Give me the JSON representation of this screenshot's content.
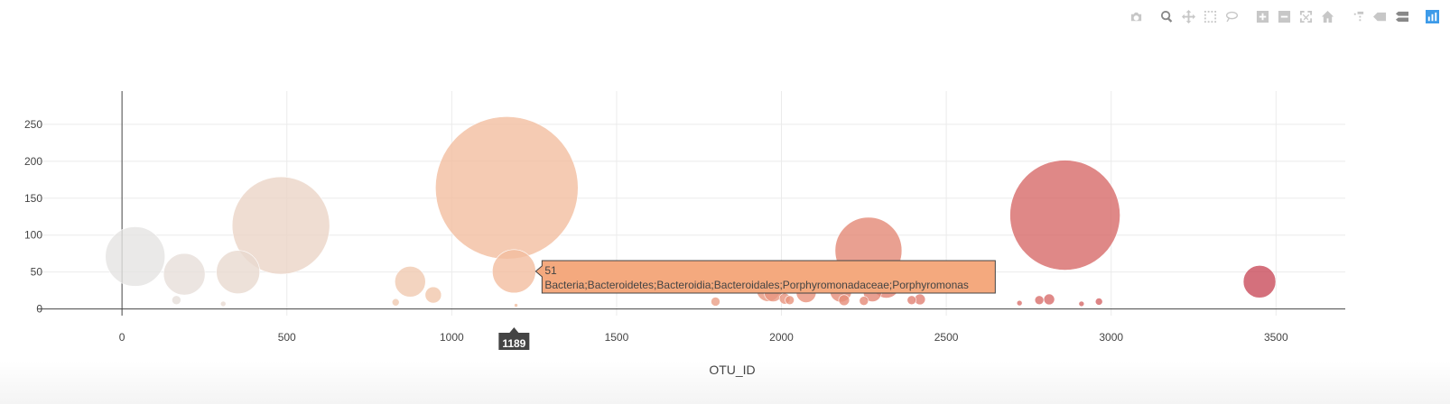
{
  "chart_data": {
    "type": "scatter",
    "mode": "bubble",
    "title": "",
    "xlabel": "OTU_ID",
    "ylabel": "",
    "xlim": [
      -255,
      3710
    ],
    "ylim": [
      -9,
      295
    ],
    "xticks": [
      0,
      500,
      1000,
      1500,
      2000,
      2500,
      3000,
      3500
    ],
    "yticks": [
      0,
      50,
      100,
      150,
      200,
      250
    ],
    "grid": true,
    "colorscale_endpoints": [
      "#e4e4e4",
      "#c84a5a"
    ],
    "points": [
      {
        "x": 40,
        "y": 71,
        "r": 33
      },
      {
        "x": 165,
        "y": 12,
        "r": 5
      },
      {
        "x": 189,
        "y": 47,
        "r": 23
      },
      {
        "x": 307,
        "y": 7,
        "r": 3
      },
      {
        "x": 352,
        "y": 50,
        "r": 24
      },
      {
        "x": 482,
        "y": 113,
        "r": 54
      },
      {
        "x": 830,
        "y": 9,
        "r": 4
      },
      {
        "x": 874,
        "y": 37,
        "r": 17
      },
      {
        "x": 944,
        "y": 19,
        "r": 9
      },
      {
        "x": 1167,
        "y": 164,
        "r": 79
      },
      {
        "x": 1189,
        "y": 51,
        "r": 24
      },
      {
        "x": 1195,
        "y": 5,
        "r": 2
      },
      {
        "x": 1800,
        "y": 10,
        "r": 5
      },
      {
        "x": 1960,
        "y": 26,
        "r": 13
      },
      {
        "x": 1975,
        "y": 22,
        "r": 10
      },
      {
        "x": 1997,
        "y": 36,
        "r": 14
      },
      {
        "x": 2010,
        "y": 14,
        "r": 6
      },
      {
        "x": 2025,
        "y": 12,
        "r": 5
      },
      {
        "x": 2075,
        "y": 22,
        "r": 11
      },
      {
        "x": 2180,
        "y": 24,
        "r": 12
      },
      {
        "x": 2190,
        "y": 12,
        "r": 6
      },
      {
        "x": 2250,
        "y": 11,
        "r": 5
      },
      {
        "x": 2264,
        "y": 79,
        "r": 37
      },
      {
        "x": 2276,
        "y": 22,
        "r": 10
      },
      {
        "x": 2318,
        "y": 33,
        "r": 15
      },
      {
        "x": 2395,
        "y": 12,
        "r": 5
      },
      {
        "x": 2420,
        "y": 13,
        "r": 6
      },
      {
        "x": 2722,
        "y": 8,
        "r": 3
      },
      {
        "x": 2782,
        "y": 12,
        "r": 5
      },
      {
        "x": 2812,
        "y": 13,
        "r": 6
      },
      {
        "x": 2860,
        "y": 127,
        "r": 61
      },
      {
        "x": 2910,
        "y": 7,
        "r": 3
      },
      {
        "x": 2963,
        "y": 10,
        "r": 4
      },
      {
        "x": 3450,
        "y": 37,
        "r": 18
      }
    ],
    "hover": {
      "x": 1189,
      "y": 51,
      "x_label": "1189",
      "lines": [
        "51",
        "Bacteria;Bacteroidetes;Bacteroidia;Bacteroidales;Porphyromonadaceae;Porphyromonas"
      ],
      "color": "#f4a97e"
    }
  },
  "modebar": {
    "buttons": [
      "camera-icon",
      "zoom-icon",
      "pan-icon",
      "box-select-icon",
      "lasso-icon",
      "zoom-in-icon",
      "zoom-out-icon",
      "autoscale-icon",
      "home-icon",
      "spike-lines-icon",
      "hover-closest-icon",
      "hover-compare-icon",
      "plotly-logo-icon"
    ]
  }
}
